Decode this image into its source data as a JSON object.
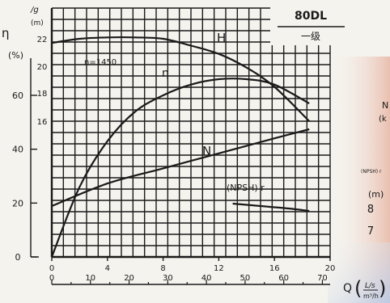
{
  "colors": {
    "background": "#f5f3ee",
    "ink": "#1a1a1a",
    "tint_right": "#e9b9a8",
    "tint_bottom_right": "#b9cbe8"
  },
  "chart_data": {
    "type": "line",
    "title": "80DL",
    "subtitle": "一级",
    "speed_label": "n=1450",
    "x_axis": {
      "flow_ls": {
        "unit": "L/s",
        "range": [
          0,
          20
        ],
        "ticks": [
          "0",
          "4",
          "8",
          "12",
          "16",
          "20"
        ]
      },
      "flow_m3h": {
        "unit": "m³/h",
        "range": [
          0,
          72
        ],
        "ticks": [
          "0",
          "10",
          "20",
          "30",
          "40",
          "50",
          "60",
          "70"
        ]
      },
      "label": "Q",
      "unit_top": "L/s",
      "unit_bottom": "m³/h"
    },
    "y_axes": {
      "efficiency": {
        "symbol": "η",
        "unit": "(%)",
        "range": [
          0,
          80
        ],
        "ticks": [
          "0",
          "20",
          "40",
          "60"
        ]
      },
      "head": {
        "unit": "/g",
        "unit2": "(m)",
        "range": [
          10,
          23
        ],
        "ticks": [
          "16",
          "18",
          "20",
          "22"
        ]
      },
      "power_tail": [
        "N",
        "(k"
      ],
      "npsh": {
        "unit": "(NPSH) r",
        "unit2": "(m)",
        "ticks": [
          "8",
          "7"
        ]
      }
    },
    "series": [
      {
        "name": "H",
        "axis": "head",
        "x": [
          0,
          2,
          4,
          6,
          8,
          10,
          12,
          14,
          16,
          18.5
        ],
        "y": [
          21.7,
          22.0,
          22.1,
          22.1,
          22.0,
          21.5,
          20.9,
          19.9,
          18.5,
          16.0
        ]
      },
      {
        "name": "η",
        "axis": "efficiency",
        "x": [
          0,
          2,
          4,
          6,
          8,
          10,
          12,
          14,
          16,
          18.5
        ],
        "y": [
          0,
          26,
          43,
          54,
          60,
          64,
          66,
          66,
          64,
          57
        ]
      },
      {
        "name": "N",
        "axis": "power",
        "x": [
          0,
          4,
          8,
          12,
          16,
          18.5
        ],
        "y": [
          19.5,
          27,
          32,
          37,
          42,
          45
        ]
      },
      {
        "name": "(NPSH) r",
        "axis": "npsh",
        "x": [
          13,
          15,
          17,
          18.5
        ],
        "y": [
          8.1,
          8.0,
          7.9,
          7.8
        ]
      }
    ]
  }
}
